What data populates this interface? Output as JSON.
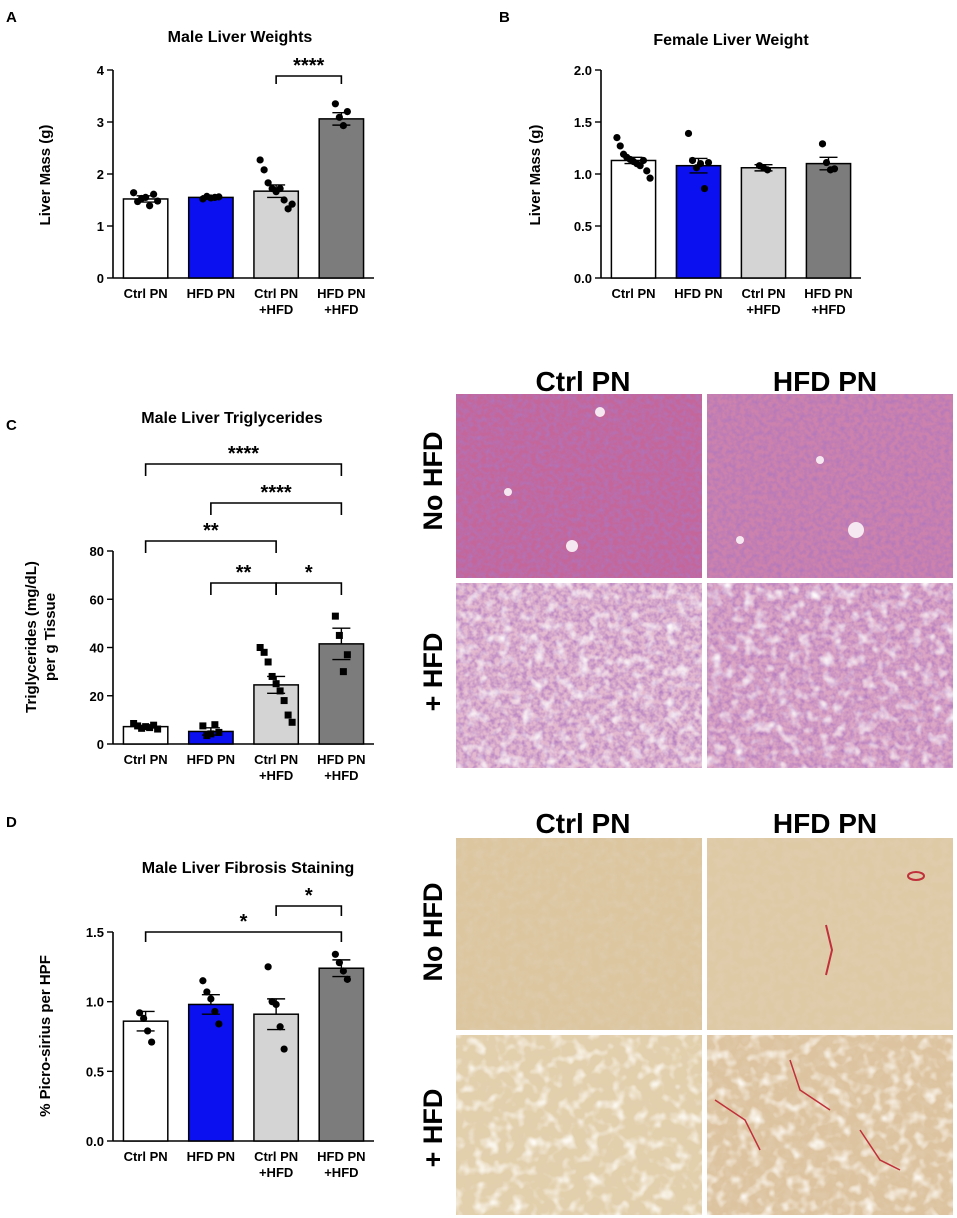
{
  "palette": {
    "ctrl": "#ffffff",
    "hfd": "#0a10f0",
    "ctrl_hfd": "#d4d4d4",
    "hfd_hfd": "#7c7c7c",
    "he_stain": "#c9729c",
    "he_steatosis": "#e6c8d8",
    "picro": "#d8c49a",
    "picro_fiber": "#c0303a"
  },
  "chart_data": [
    {
      "panel": "A",
      "type": "bar",
      "title": "Male Liver Weights",
      "ylabel": "Liver Mass (g)",
      "xlabel": "",
      "ylim": [
        0,
        4
      ],
      "yticks": [
        "0",
        "1",
        "2",
        "3",
        "4"
      ],
      "categories": [
        [
          "Ctrl PN"
        ],
        [
          "HFD PN"
        ],
        [
          "Ctrl PN",
          "+HFD"
        ],
        [
          "HFD PN",
          "+HFD"
        ]
      ],
      "values": [
        1.52,
        1.55,
        1.67,
        3.06
      ],
      "sem": [
        0.06,
        0.03,
        0.12,
        0.12
      ],
      "points": [
        [
          1.64,
          1.47,
          1.53,
          1.55,
          1.39,
          1.61,
          1.48
        ],
        [
          1.52,
          1.57,
          1.54,
          1.55,
          1.56
        ],
        [
          2.27,
          2.08,
          1.83,
          1.72,
          1.66,
          1.72,
          1.5,
          1.33,
          1.42
        ],
        [
          3.35,
          3.09,
          2.93,
          3.2
        ]
      ],
      "marker": "circle",
      "significance": [
        {
          "from": 2,
          "to": 3,
          "label": "****"
        }
      ]
    },
    {
      "panel": "B",
      "type": "bar",
      "title": "Female Liver Weight",
      "ylabel": "Liver Mass (g)",
      "xlabel": "",
      "ylim": [
        0,
        2.0
      ],
      "yticks": [
        "0.0",
        "0.5",
        "1.0",
        "1.5",
        "2.0"
      ],
      "categories": [
        [
          "Ctrl PN"
        ],
        [
          "HFD PN"
        ],
        [
          "Ctrl PN",
          "+HFD"
        ],
        [
          "HFD PN",
          "+HFD"
        ]
      ],
      "values": [
        1.13,
        1.08,
        1.06,
        1.1
      ],
      "sem": [
        0.03,
        0.07,
        0.03,
        0.06
      ],
      "points": [
        [
          1.35,
          1.27,
          1.19,
          1.16,
          1.14,
          1.12,
          1.1,
          1.08,
          1.13,
          1.03,
          0.96
        ],
        [
          1.39,
          1.13,
          1.06,
          1.1,
          0.86,
          1.11
        ],
        [
          1.08,
          1.06,
          1.04
        ],
        [
          1.29,
          1.11,
          1.04,
          1.05
        ]
      ],
      "marker": "circle",
      "significance": []
    },
    {
      "panel": "C",
      "type": "bar",
      "title": "Male Liver Triglycerides",
      "ylabel": [
        "Triglycerides (mg/dL)",
        "per g Tissue"
      ],
      "xlabel": "",
      "ylim": [
        0,
        80
      ],
      "yticks": [
        "0",
        "20",
        "40",
        "60",
        "80"
      ],
      "categories": [
        [
          "Ctrl PN"
        ],
        [
          "HFD PN"
        ],
        [
          "Ctrl PN",
          "+HFD"
        ],
        [
          "HFD PN",
          "+HFD"
        ]
      ],
      "values": [
        7.2,
        5.2,
        24.5,
        41.5
      ],
      "sem": [
        0.5,
        1.5,
        3.5,
        6.5
      ],
      "points": [
        [
          8.5,
          7.5,
          6.5,
          7.2,
          6.8,
          7.8,
          6.2
        ],
        [
          7.5,
          3.5,
          4.2,
          8.0,
          4.8
        ],
        [
          40,
          38,
          34,
          28,
          25,
          22,
          18,
          12,
          9
        ],
        [
          53,
          45,
          30,
          37
        ]
      ],
      "marker": "square",
      "significance": [
        {
          "from": 0,
          "to": 3,
          "label": "****"
        },
        {
          "from": 1,
          "to": 3,
          "label": "****"
        },
        {
          "from": 0,
          "to": 2,
          "label": "**"
        },
        {
          "from": 1,
          "to": 2,
          "label": "**"
        },
        {
          "from": 2,
          "to": 3,
          "label": "*"
        }
      ]
    },
    {
      "panel": "D",
      "type": "bar",
      "title": "Male Liver Fibrosis Staining",
      "ylabel": "% Picro-sirius per HPF",
      "xlabel": "",
      "ylim": [
        0,
        1.5
      ],
      "yticks": [
        "0.0",
        "0.5",
        "1.0",
        "1.5"
      ],
      "categories": [
        [
          "Ctrl PN"
        ],
        [
          "HFD PN"
        ],
        [
          "Ctrl PN",
          "+HFD"
        ],
        [
          "HFD PN",
          "+HFD"
        ]
      ],
      "values": [
        0.86,
        0.98,
        0.91,
        1.24
      ],
      "sem": [
        0.07,
        0.07,
        0.11,
        0.06
      ],
      "points": [
        [
          0.92,
          0.88,
          0.79,
          0.71
        ],
        [
          1.15,
          1.07,
          1.02,
          0.93,
          0.84
        ],
        [
          1.25,
          1.0,
          0.98,
          0.82,
          0.66
        ],
        [
          1.34,
          1.28,
          1.22,
          1.16
        ]
      ],
      "marker": "circle",
      "significance": [
        {
          "from": 2,
          "to": 3,
          "label": "*"
        },
        {
          "from": 0,
          "to": 3,
          "label": "*"
        }
      ]
    }
  ],
  "histology": [
    {
      "panel": "C",
      "stain": "he",
      "col_labels": [
        "Ctrl PN",
        "HFD  PN"
      ],
      "row_labels": [
        "No HFD",
        "+ HFD"
      ]
    },
    {
      "panel": "D",
      "stain": "picro",
      "col_labels": [
        "Ctrl PN",
        "HFD  PN"
      ],
      "row_labels": [
        "No HFD",
        "+ HFD"
      ]
    }
  ]
}
